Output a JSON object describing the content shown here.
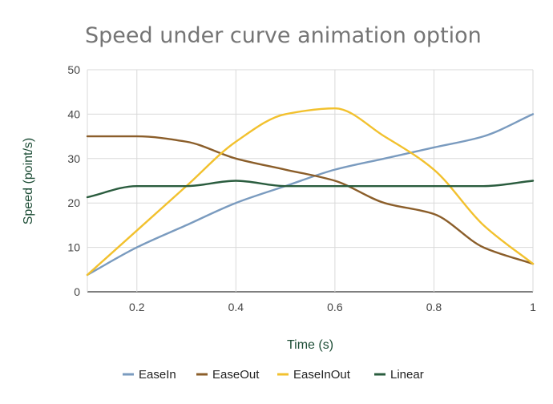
{
  "chart_data": {
    "type": "line",
    "title": "Speed under curve animation option",
    "xlabel": "Time (s)",
    "ylabel": "Speed (point/s)",
    "xlim": [
      0.1,
      1.0
    ],
    "ylim": [
      0,
      50
    ],
    "xticks": [
      0.2,
      0.4,
      0.6,
      0.8,
      1.0
    ],
    "xtick_labels": [
      "0.2",
      "0.4",
      "0.6",
      "0.8",
      "1"
    ],
    "yticks": [
      0,
      10,
      20,
      30,
      40,
      50
    ],
    "ytick_labels": [
      "0",
      "10",
      "20",
      "30",
      "40",
      "50"
    ],
    "grid": true,
    "legend_position": "bottom",
    "x": [
      0.1,
      0.2,
      0.3,
      0.4,
      0.5,
      0.6,
      0.7,
      0.8,
      0.9,
      1.0
    ],
    "series": [
      {
        "name": "EaseIn",
        "color": "#7a9bbf",
        "values": [
          3.8,
          10.0,
          15.0,
          20.0,
          23.8,
          27.5,
          30.0,
          32.5,
          35.0,
          40.0
        ]
      },
      {
        "name": "EaseOut",
        "color": "#8b5e2a",
        "values": [
          35.0,
          35.0,
          33.8,
          30.0,
          27.5,
          25.0,
          20.0,
          17.5,
          10.0,
          6.3
        ]
      },
      {
        "name": "EaseInOut",
        "color": "#f2c12e",
        "values": [
          3.8,
          13.8,
          23.8,
          33.8,
          40.0,
          41.3,
          35.0,
          27.5,
          15.0,
          6.3
        ]
      },
      {
        "name": "Linear",
        "color": "#2a5c3e",
        "values": [
          21.3,
          23.8,
          23.8,
          25.0,
          23.8,
          23.8,
          23.8,
          23.8,
          23.8,
          25.0
        ]
      }
    ]
  }
}
